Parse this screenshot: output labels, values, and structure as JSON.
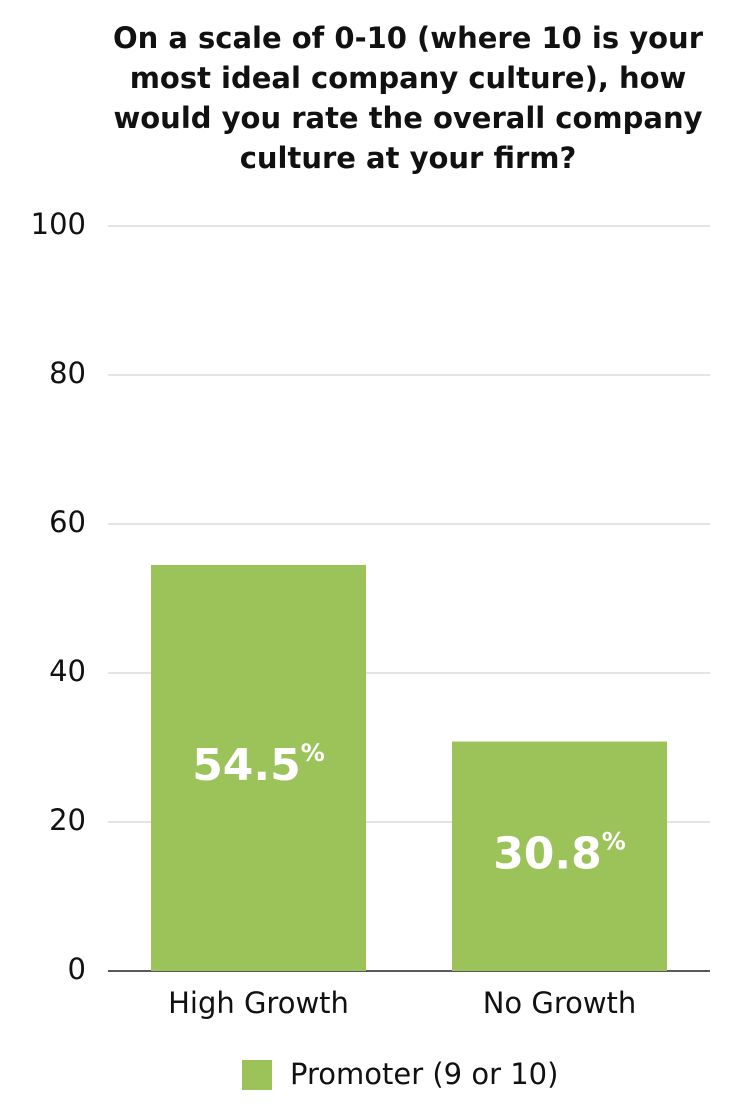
{
  "chart_data": {
    "type": "bar",
    "title": "On a scale of 0-10 (where 10 is your most ideal company culture), how would you rate the overall company culture at your firm?",
    "categories": [
      "High Growth",
      "No Growth"
    ],
    "series": [
      {
        "name": "Promoter (9 or 10)",
        "color": "#9cc35a",
        "values": [
          54.5,
          30.8
        ],
        "value_labels": [
          "54.5%",
          "30.8%"
        ]
      }
    ],
    "ylim": [
      0,
      100
    ],
    "yticks": [
      0,
      20,
      40,
      60,
      80,
      100
    ],
    "grid": true,
    "legend": "bottom"
  }
}
